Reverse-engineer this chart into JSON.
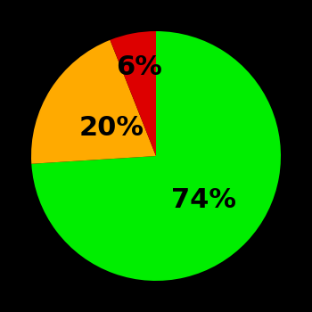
{
  "slices": [
    74,
    20,
    6
  ],
  "colors": [
    "#00ee00",
    "#ffaa00",
    "#dd0000"
  ],
  "labels": [
    "74%",
    "20%",
    "6%"
  ],
  "background_color": "#000000",
  "startangle": 90,
  "label_fontsize": 22,
  "label_color": "#000000",
  "label_radii": [
    0.52,
    0.42,
    0.72
  ]
}
